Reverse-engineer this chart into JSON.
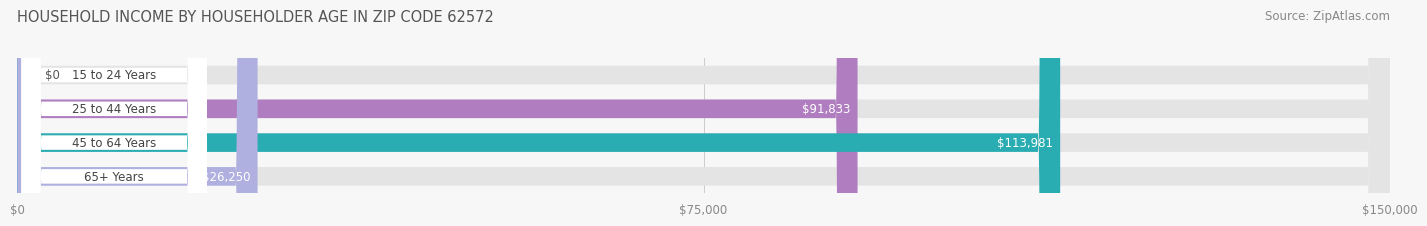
{
  "title": "HOUSEHOLD INCOME BY HOUSEHOLDER AGE IN ZIP CODE 62572",
  "source": "Source: ZipAtlas.com",
  "categories": [
    "15 to 24 Years",
    "25 to 44 Years",
    "45 to 64 Years",
    "65+ Years"
  ],
  "values": [
    0,
    91833,
    113981,
    26250
  ],
  "value_labels": [
    "$0",
    "$91,833",
    "$113,981",
    "$26,250"
  ],
  "bar_colors": [
    "#a8b8e8",
    "#b07ec0",
    "#2aadb2",
    "#b0b0e0"
  ],
  "xlim": [
    0,
    150000
  ],
  "xtick_vals": [
    0,
    75000,
    150000
  ],
  "xtick_labels": [
    "$0",
    "$75,000",
    "$150,000"
  ],
  "background_color": "#f7f7f7",
  "bar_bg_color": "#e4e4e4",
  "title_fontsize": 10.5,
  "source_fontsize": 8.5,
  "label_fontsize": 8.5,
  "category_fontsize": 8.5,
  "tick_fontsize": 8.5
}
